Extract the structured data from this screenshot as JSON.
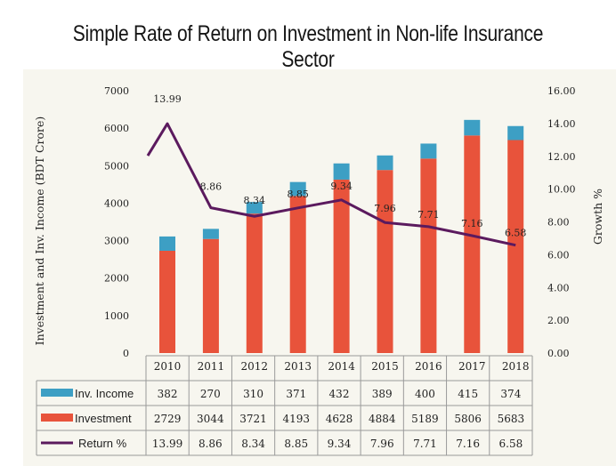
{
  "title": "Simple Rate of Return on Investment in Non-life Insurance Sector",
  "chart_data": {
    "type": "bar",
    "stacked": true,
    "categories": [
      "2010",
      "2011",
      "2012",
      "2013",
      "2014",
      "2015",
      "2016",
      "2017",
      "2018"
    ],
    "series": [
      {
        "name": "Investment",
        "kind": "bar",
        "color": "#e8533b",
        "values": [
          2729,
          3044,
          3721,
          4193,
          4628,
          4884,
          5189,
          5806,
          5683
        ]
      },
      {
        "name": "Inv. Income",
        "kind": "bar",
        "color": "#3d9fc4",
        "values": [
          382,
          270,
          310,
          371,
          432,
          389,
          400,
          415,
          374
        ]
      },
      {
        "name": "Return %",
        "kind": "line",
        "axis": "right",
        "color": "#5b1a5e",
        "values": [
          13.99,
          8.86,
          8.34,
          8.85,
          9.34,
          7.96,
          7.71,
          7.16,
          6.58
        ]
      }
    ],
    "ylabel": "Investment and Inv. Income (BDT Crore)",
    "y2label": "Growth %",
    "ylim": [
      0,
      7000
    ],
    "y2lim": [
      0,
      16
    ],
    "yticks": [
      "0",
      "1000",
      "2000",
      "3000",
      "4000",
      "5000",
      "6000",
      "7000"
    ],
    "y2ticks": [
      "0.00",
      "2.00",
      "4.00",
      "6.00",
      "8.00",
      "10.00",
      "12.00",
      "14.00",
      "16.00"
    ],
    "data_labels": [
      "13.99",
      "8.86",
      "8.34",
      "8.85",
      "9.34",
      "7.96",
      "7.71",
      "7.16",
      "6.58"
    ],
    "data_table": {
      "rows": [
        {
          "label": "Inv. Income",
          "values": [
            "382",
            "270",
            "310",
            "371",
            "432",
            "389",
            "400",
            "415",
            "374"
          ]
        },
        {
          "label": "Investment",
          "values": [
            "2729",
            "3044",
            "3721",
            "4193",
            "4628",
            "4884",
            "5189",
            "5806",
            "5683"
          ]
        },
        {
          "label": "Return %",
          "values": [
            "13.99",
            "8.86",
            "8.34",
            "8.85",
            "9.34",
            "7.96",
            "7.71",
            "7.16",
            "6.58"
          ]
        }
      ]
    },
    "grid": false,
    "legend": "data-table"
  }
}
